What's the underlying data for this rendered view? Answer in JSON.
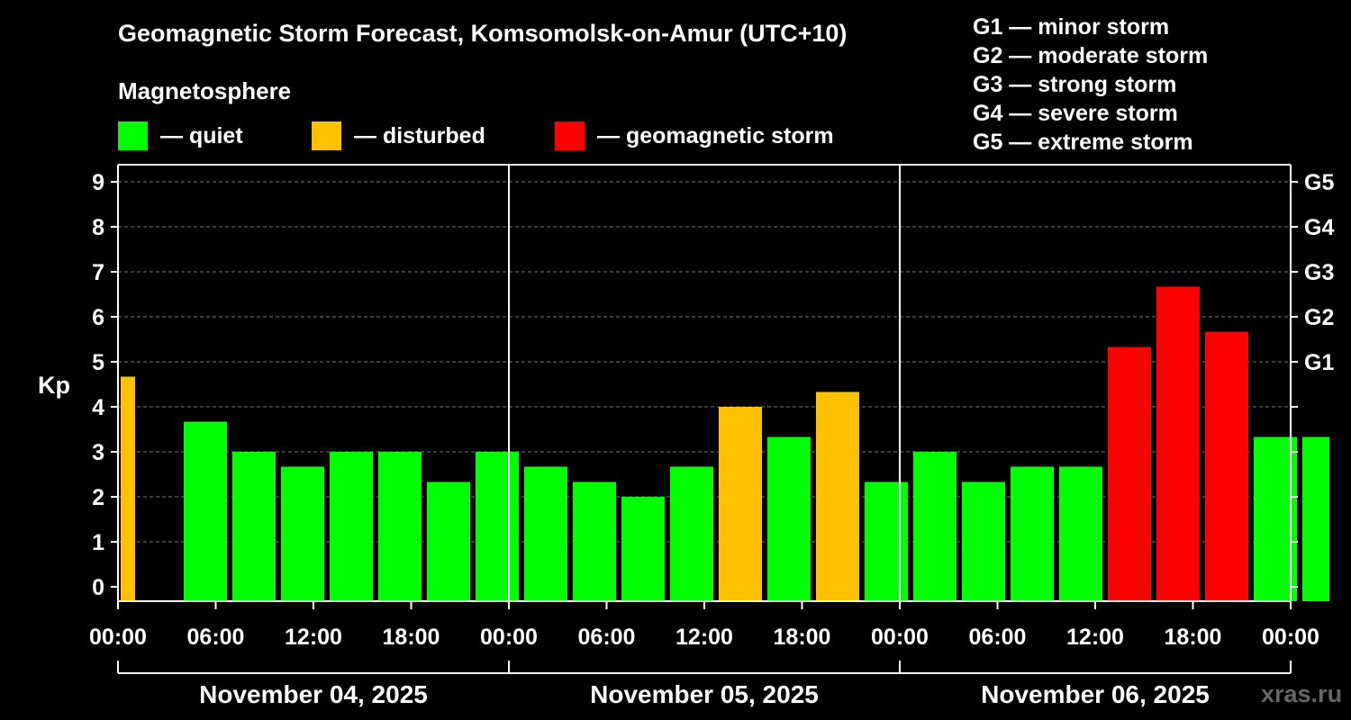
{
  "title": "Geomagnetic Storm Forecast, Komsomolsk-on-Amur (UTC+10)",
  "legend": {
    "heading": "Magnetosphere",
    "items": [
      {
        "label": "— quiet",
        "color": "#00ff00"
      },
      {
        "label": "— disturbed",
        "color": "#ffc000"
      },
      {
        "label": "— geomagnetic storm",
        "color": "#ff0000"
      }
    ]
  },
  "g_scale": [
    "G1 — minor storm",
    "G2 — moderate storm",
    "G3 — strong storm",
    "G4 — severe storm",
    "G5 — extreme storm"
  ],
  "watermark": "xras.ru",
  "chart_data": {
    "type": "bar",
    "ylabel": "Kp",
    "ylim": [
      0,
      9
    ],
    "yticks": [
      "0",
      "1",
      "2",
      "3",
      "4",
      "5",
      "6",
      "7",
      "8",
      "9"
    ],
    "right_ticks": [
      "G1",
      "G2",
      "G3",
      "G4",
      "G5"
    ],
    "xticks": [
      "00:00",
      "06:00",
      "12:00",
      "18:00",
      "00:00",
      "06:00",
      "12:00",
      "18:00",
      "00:00",
      "06:00",
      "12:00",
      "18:00",
      "00:00"
    ],
    "days": [
      "November 04, 2025",
      "November 05, 2025",
      "November 06, 2025"
    ],
    "grid": true,
    "colors": {
      "quiet": "#00ff00",
      "disturbed": "#ffc000",
      "storm": "#ff0000"
    },
    "values": [
      4.67,
      3.67,
      3.0,
      2.67,
      3.0,
      3.0,
      2.33,
      3.0,
      2.67,
      2.33,
      2.0,
      2.67,
      4.0,
      3.33,
      4.33,
      2.33,
      3.0,
      2.33,
      2.67,
      2.67,
      5.33,
      6.67,
      5.67,
      3.33,
      3.33
    ],
    "levels": [
      "disturbed",
      "quiet",
      "quiet",
      "quiet",
      "quiet",
      "quiet",
      "quiet",
      "quiet",
      "quiet",
      "quiet",
      "quiet",
      "quiet",
      "disturbed",
      "quiet",
      "disturbed",
      "quiet",
      "quiet",
      "quiet",
      "quiet",
      "quiet",
      "storm",
      "storm",
      "storm",
      "quiet",
      "quiet"
    ]
  }
}
